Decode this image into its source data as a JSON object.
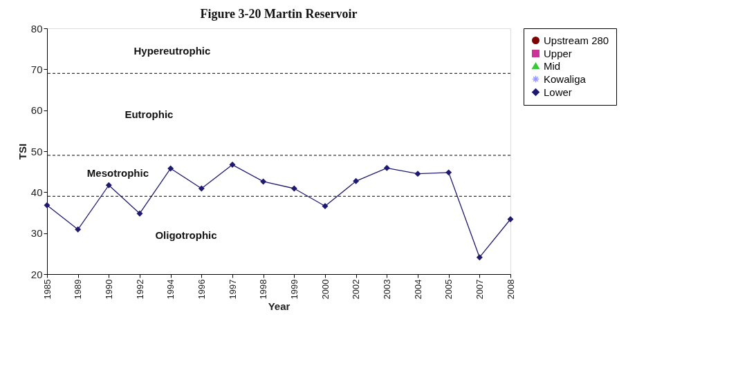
{
  "chart_data": {
    "type": "line",
    "title": "Figure 3-20 Martin Reservoir",
    "xlabel": "Year",
    "ylabel": "TSI",
    "categories": [
      "1985",
      "1989",
      "1990",
      "1992",
      "1994",
      "1996",
      "1997",
      "1998",
      "1999",
      "2000",
      "2002",
      "2003",
      "2004",
      "2005",
      "2007",
      "2008"
    ],
    "series": [
      {
        "name": "Upstream 280",
        "color": "#800000",
        "marker": "circle",
        "values": [
          null,
          null,
          null,
          null,
          null,
          null,
          null,
          null,
          null,
          null,
          null,
          null,
          null,
          null,
          null,
          null
        ]
      },
      {
        "name": "Upper",
        "color": "#cc3399",
        "marker": "square",
        "values": [
          null,
          null,
          null,
          null,
          null,
          null,
          null,
          null,
          null,
          null,
          null,
          null,
          null,
          null,
          null,
          null
        ]
      },
      {
        "name": "Mid",
        "color": "#33cc33",
        "marker": "triangle",
        "values": [
          null,
          null,
          null,
          null,
          null,
          null,
          null,
          null,
          null,
          null,
          null,
          null,
          null,
          null,
          null,
          null
        ]
      },
      {
        "name": "Kowaliga",
        "color": "#9999ff",
        "marker": "star",
        "values": [
          null,
          null,
          null,
          null,
          null,
          null,
          null,
          null,
          null,
          null,
          null,
          null,
          null,
          null,
          null,
          null
        ]
      },
      {
        "name": "Lower",
        "color": "#1f1a6e",
        "marker": "diamond",
        "values": [
          36.8,
          30.9,
          41.7,
          34.8,
          45.8,
          40.9,
          46.7,
          42.6,
          40.9,
          36.6,
          42.7,
          45.9,
          44.5,
          44.8,
          24.1,
          33.4
        ]
      }
    ],
    "ylim": [
      20,
      80
    ],
    "yticks": [
      20,
      30,
      40,
      50,
      60,
      70,
      80
    ],
    "grid": false,
    "legend": "right",
    "line_style": "solid",
    "ref_lines": [
      {
        "axis": "y",
        "value": 69,
        "color": "#000000",
        "line_style": "dashed"
      },
      {
        "axis": "y",
        "value": 49,
        "color": "#000000",
        "line_style": "dashed"
      },
      {
        "axis": "y",
        "value": 39,
        "color": "#000000",
        "line_style": "dashed"
      }
    ],
    "annotations": [
      "Hypereutrophic",
      "Eutrophic",
      "Mesotrophic",
      "Oligotrophic"
    ]
  }
}
